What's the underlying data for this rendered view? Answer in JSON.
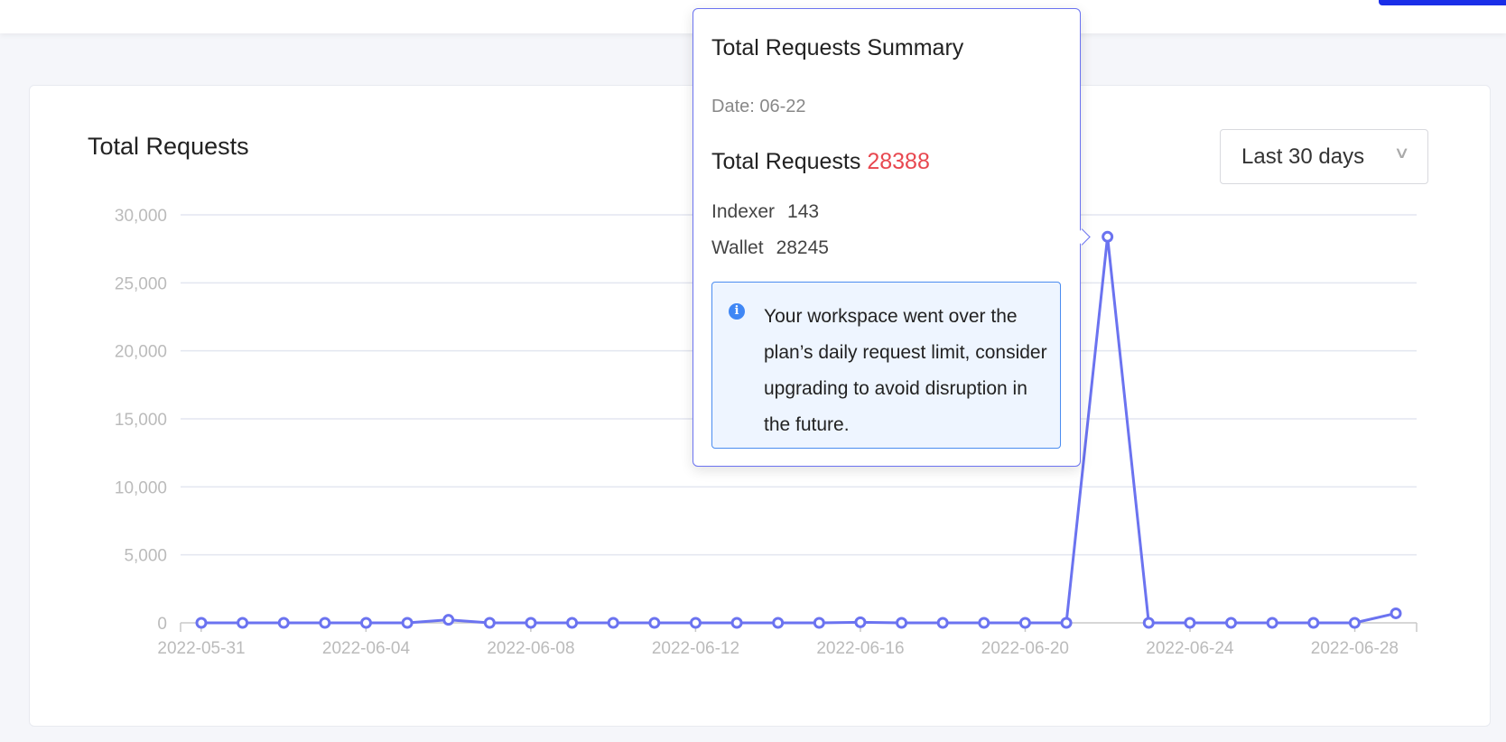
{
  "card": {
    "title": "Total Requests",
    "range_select": {
      "value": "Last 30 days"
    }
  },
  "tooltip": {
    "title": "Total Requests Summary",
    "date": "Date: 06-22",
    "total_label": "Total Requests",
    "total_value": "28388",
    "rows": [
      {
        "label": "Indexer",
        "value": "143"
      },
      {
        "label": "Wallet",
        "value": "28245"
      }
    ],
    "notice": "Your workspace went over the plan’s daily request limit, consider upgrading to avoid disruption in the future."
  },
  "colors": {
    "line": "#6b73f0",
    "total_value": "#e8474f",
    "info_border": "#4a8cf0",
    "header_button": "#1a2ee8"
  },
  "chart_data": {
    "type": "line",
    "title": "Total Requests",
    "ylim": [
      0,
      30000
    ],
    "yticks": [
      "0",
      "5,000",
      "10,000",
      "15,000",
      "20,000",
      "25,000",
      "30,000"
    ],
    "grid": true,
    "x": [
      "2022-05-31",
      "2022-06-01",
      "2022-06-02",
      "2022-06-03",
      "2022-06-04",
      "2022-06-05",
      "2022-06-06",
      "2022-06-07",
      "2022-06-08",
      "2022-06-09",
      "2022-06-10",
      "2022-06-11",
      "2022-06-12",
      "2022-06-13",
      "2022-06-14",
      "2022-06-15",
      "2022-06-16",
      "2022-06-17",
      "2022-06-18",
      "2022-06-19",
      "2022-06-20",
      "2022-06-21",
      "2022-06-22",
      "2022-06-23",
      "2022-06-24",
      "2022-06-25",
      "2022-06-26",
      "2022-06-27",
      "2022-06-28",
      "2022-06-29"
    ],
    "xtick_labels": [
      "2022-05-31",
      "2022-06-04",
      "2022-06-08",
      "2022-06-12",
      "2022-06-16",
      "2022-06-20",
      "2022-06-24",
      "2022-06-28"
    ],
    "values": [
      0,
      0,
      0,
      0,
      0,
      0,
      220,
      0,
      0,
      0,
      0,
      0,
      0,
      0,
      0,
      0,
      40,
      0,
      0,
      0,
      0,
      0,
      28388,
      0,
      0,
      0,
      0,
      0,
      0,
      700
    ]
  }
}
